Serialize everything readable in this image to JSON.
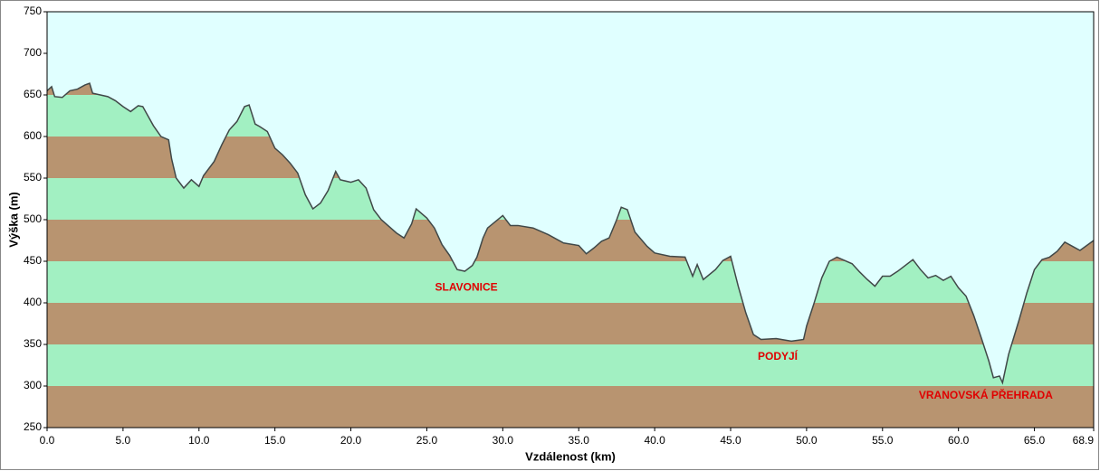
{
  "chart_data": {
    "type": "area",
    "xlabel": "Vzdálenost  (km)",
    "ylabel": "Výška (m)",
    "x": [
      0,
      0.3,
      0.5,
      1.0,
      1.5,
      2.0,
      2.5,
      2.8,
      3.0,
      4.0,
      4.5,
      5.0,
      5.5,
      6.0,
      6.3,
      7.0,
      7.5,
      8.0,
      8.2,
      8.5,
      9.0,
      9.5,
      10.0,
      10.3,
      11.0,
      11.5,
      12.0,
      12.5,
      13.0,
      13.3,
      13.7,
      14.0,
      14.5,
      15.0,
      15.5,
      16.0,
      16.5,
      17.0,
      17.5,
      18.0,
      18.5,
      19.0,
      19.3,
      20.0,
      20.5,
      21.0,
      21.5,
      22.0,
      23.0,
      23.5,
      24.0,
      24.3,
      25.0,
      25.5,
      26.0,
      26.5,
      27.0,
      27.5,
      28.0,
      28.3,
      28.7,
      29.0,
      30.0,
      30.5,
      31.0,
      32.0,
      33.0,
      34.0,
      35.0,
      35.5,
      36.0,
      36.5,
      37.0,
      37.5,
      37.8,
      38.2,
      38.7,
      39.5,
      40.0,
      41.0,
      42.0,
      42.5,
      42.8,
      43.2,
      44.0,
      44.5,
      45.0,
      45.5,
      46.0,
      46.5,
      47.0,
      48.0,
      49.0,
      49.8,
      50.0,
      50.5,
      51.0,
      51.5,
      52.0,
      53.0,
      53.5,
      54.0,
      54.5,
      55.0,
      55.5,
      56.0,
      57.0,
      57.5,
      58.0,
      58.5,
      59.0,
      59.5,
      60.0,
      60.5,
      61.0,
      61.5,
      62.0,
      62.3,
      62.7,
      62.9,
      63.3,
      64.0,
      64.5,
      65.0,
      65.5,
      66.0,
      66.5,
      67.0,
      67.5,
      68.0,
      68.9
    ],
    "values": [
      655,
      660,
      648,
      647,
      655,
      657,
      662,
      664,
      652,
      648,
      643,
      636,
      630,
      637,
      636,
      613,
      600,
      596,
      573,
      550,
      538,
      548,
      540,
      553,
      570,
      590,
      608,
      618,
      636,
      638,
      615,
      612,
      606,
      586,
      578,
      568,
      556,
      530,
      513,
      520,
      535,
      558,
      548,
      545,
      548,
      538,
      512,
      500,
      484,
      478,
      495,
      513,
      502,
      490,
      470,
      457,
      440,
      438,
      445,
      455,
      478,
      490,
      505,
      493,
      493,
      490,
      482,
      472,
      469,
      459,
      466,
      474,
      478,
      500,
      515,
      512,
      485,
      468,
      460,
      456,
      455,
      432,
      446,
      428,
      440,
      451,
      456,
      420,
      388,
      362,
      356,
      357,
      354,
      356,
      372,
      400,
      430,
      450,
      455,
      447,
      437,
      428,
      420,
      432,
      432,
      438,
      452,
      440,
      430,
      433,
      427,
      432,
      418,
      408,
      385,
      358,
      330,
      310,
      312,
      304,
      338,
      380,
      412,
      440,
      452,
      455,
      462,
      473,
      468,
      463,
      475
    ],
    "xlim": [
      0,
      68.9
    ],
    "xticks": [
      {
        "value": 0,
        "label": "0.0"
      },
      {
        "value": 5,
        "label": "5.0"
      },
      {
        "value": 10,
        "label": "10.0"
      },
      {
        "value": 15,
        "label": "15.0"
      },
      {
        "value": 20,
        "label": "20.0"
      },
      {
        "value": 25,
        "label": "25.0"
      },
      {
        "value": 30,
        "label": "30.0"
      },
      {
        "value": 35,
        "label": "35.0"
      },
      {
        "value": 40,
        "label": "40.0"
      },
      {
        "value": 45,
        "label": "45.0"
      },
      {
        "value": 50,
        "label": "50.0"
      },
      {
        "value": 55,
        "label": "55.0"
      },
      {
        "value": 60,
        "label": "60.0"
      },
      {
        "value": 65,
        "label": "65.0"
      },
      68.9
    ],
    "ylim": [
      250,
      750
    ],
    "yticks": [
      250,
      300,
      350,
      400,
      450,
      500,
      550,
      600,
      650,
      700,
      750
    ],
    "band_colors": [
      "#b89470",
      "#a2f0c2"
    ],
    "line_color": "#404848",
    "background": "#e0ffff",
    "annotations": [
      {
        "text": "SLAVONICE",
        "x": 27.6,
        "y": 418
      },
      {
        "text": "PODYJÍ",
        "x": 48.1,
        "y": 335
      },
      {
        "text": "VRANOVSKÁ PŘEHRADA",
        "x": 61.8,
        "y": 288
      }
    ],
    "annotation_color": "#e00000"
  }
}
